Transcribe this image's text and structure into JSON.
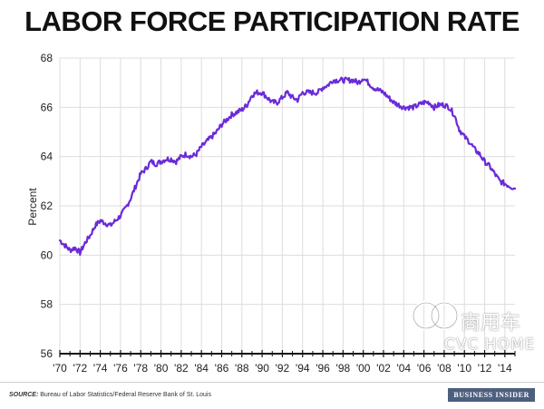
{
  "chart_data": {
    "type": "line",
    "title": "LABOR FORCE PARTICIPATION RATE",
    "xlabel": "",
    "ylabel": "Percent",
    "ylim": [
      56,
      68
    ],
    "yticks": [
      56,
      58,
      60,
      62,
      64,
      66,
      68
    ],
    "xlim": [
      1970,
      2015
    ],
    "xticks": [
      "'70",
      "'72",
      "'74",
      "'76",
      "'78",
      "'80",
      "'82",
      "'84",
      "'86",
      "'88",
      "'90",
      "'92",
      "'94",
      "'96",
      "'98",
      "'00",
      "'02",
      "'04",
      "'06",
      "'08",
      "'10",
      "'12",
      "'14"
    ],
    "xtick_years": [
      1970,
      1972,
      1974,
      1976,
      1978,
      1980,
      1982,
      1984,
      1986,
      1988,
      1990,
      1992,
      1994,
      1996,
      1998,
      2000,
      2002,
      2004,
      2006,
      2008,
      2010,
      2012,
      2014
    ],
    "grid": true,
    "line_color": "#6a2bd8",
    "series": [
      {
        "x": [
          1970.0,
          1970.5,
          1971.0,
          1971.5,
          1972.0,
          1972.5,
          1973.0,
          1973.5,
          1974.0,
          1974.5,
          1975.0,
          1975.5,
          1976.0,
          1976.5,
          1977.0,
          1977.5,
          1978.0,
          1978.5,
          1979.0,
          1979.5,
          1980.0,
          1980.5,
          1981.0,
          1981.5,
          1982.0,
          1982.5,
          1983.0,
          1983.5,
          1984.0,
          1984.5,
          1985.0,
          1985.5,
          1986.0,
          1986.5,
          1987.0,
          1987.5,
          1988.0,
          1988.5,
          1989.0,
          1989.5,
          1990.0,
          1990.5,
          1991.0,
          1991.5,
          1992.0,
          1992.5,
          1993.0,
          1993.5,
          1994.0,
          1994.5,
          1995.0,
          1995.5,
          1996.0,
          1996.5,
          1997.0,
          1997.5,
          1998.0,
          1998.5,
          1999.0,
          1999.5,
          2000.0,
          2000.5,
          2001.0,
          2001.5,
          2002.0,
          2002.5,
          2003.0,
          2003.5,
          2004.0,
          2004.5,
          2005.0,
          2005.5,
          2006.0,
          2006.5,
          2007.0,
          2007.5,
          2008.0,
          2008.5,
          2009.0,
          2009.5,
          2010.0,
          2010.5,
          2011.0,
          2011.5,
          2012.0,
          2012.5,
          2013.0,
          2013.5,
          2014.0,
          2014.5,
          2015.0
        ],
        "values": [
          60.6,
          60.4,
          60.2,
          60.3,
          60.1,
          60.5,
          60.8,
          61.2,
          61.4,
          61.3,
          61.2,
          61.4,
          61.6,
          61.9,
          62.3,
          62.8,
          63.3,
          63.5,
          63.8,
          63.7,
          63.8,
          63.9,
          63.9,
          63.8,
          64.0,
          64.1,
          64.0,
          64.1,
          64.4,
          64.6,
          64.8,
          65.0,
          65.3,
          65.5,
          65.7,
          65.8,
          65.9,
          66.1,
          66.5,
          66.6,
          66.6,
          66.4,
          66.2,
          66.2,
          66.4,
          66.6,
          66.4,
          66.3,
          66.6,
          66.6,
          66.6,
          66.6,
          66.8,
          66.9,
          67.1,
          67.1,
          67.1,
          67.1,
          67.1,
          67.0,
          67.2,
          67.0,
          66.8,
          66.7,
          66.6,
          66.4,
          66.2,
          66.1,
          66.0,
          66.0,
          66.0,
          66.1,
          66.2,
          66.2,
          66.0,
          66.1,
          66.1,
          66.0,
          65.7,
          65.1,
          64.8,
          64.6,
          64.3,
          64.1,
          63.8,
          63.6,
          63.3,
          63.0,
          62.9,
          62.8,
          62.7
        ]
      }
    ]
  },
  "source": {
    "label": "SOURCE:",
    "text": "Bureau of Labor Statistics/Federal Reserve Bank of St. Louis"
  },
  "brand": "BUSINESS INSIDER",
  "watermark": {
    "text": "商用车",
    "subtext": "CVC HOME"
  }
}
